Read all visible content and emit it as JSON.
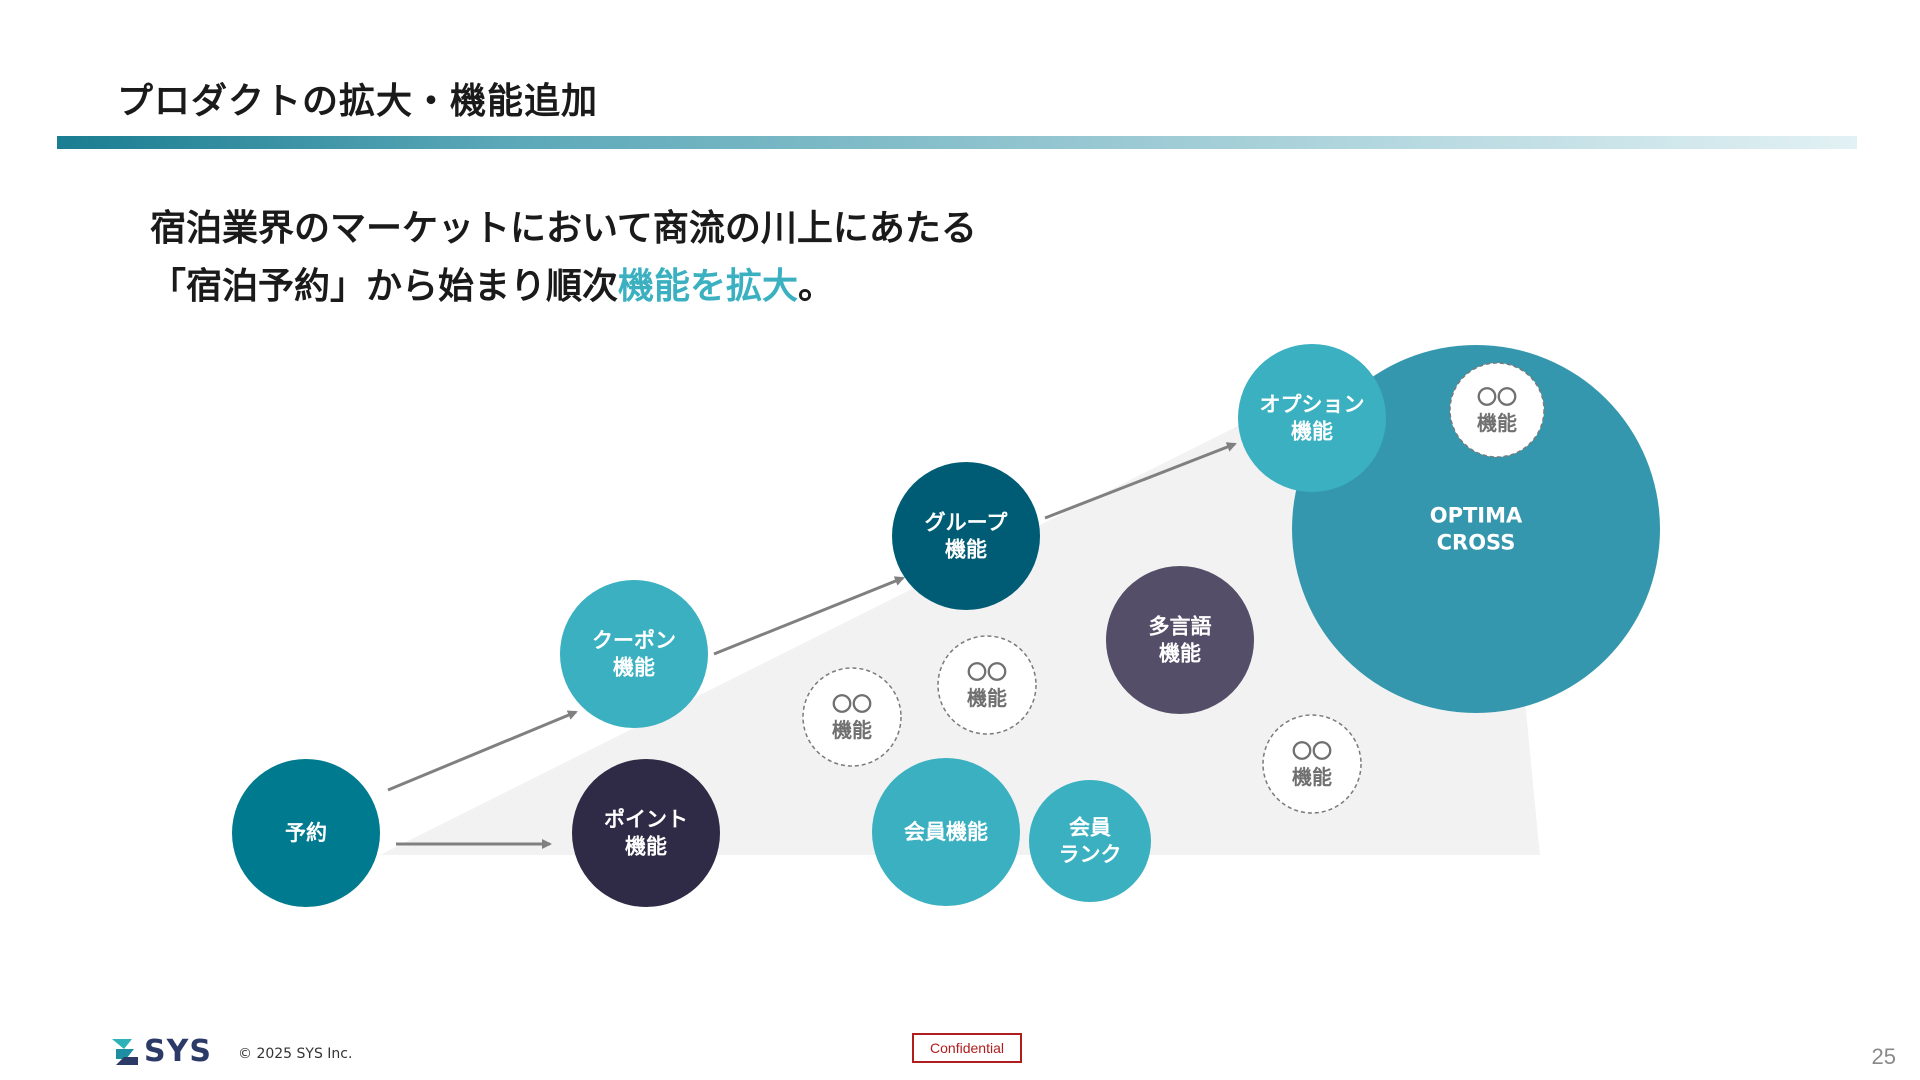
{
  "slide": {
    "title": "プロダクトの拡大・機能追加",
    "lead_line1": "宿泊業界のマーケットにおいて商流の川上にあたる",
    "lead_line2_pre": "「宿泊予約」から始まり順次",
    "lead_line2_hl": "機能を拡大",
    "lead_line2_post": "。",
    "colors": {
      "accent": "#3ab0c0",
      "teal_dark": "#007a8f",
      "navy": "#005c75",
      "purple_dark": "#2f2a45",
      "slate_purple": "#544e68",
      "big_circle": "#3497ad"
    }
  },
  "diagram": {
    "nodes": [
      {
        "id": "yoyaku",
        "lines": [
          "予約"
        ]
      },
      {
        "id": "coupon",
        "lines": [
          "クーポン",
          "機能"
        ]
      },
      {
        "id": "point",
        "lines": [
          "ポイント",
          "機能"
        ]
      },
      {
        "id": "group",
        "lines": [
          "グループ",
          "機能"
        ]
      },
      {
        "id": "kaiin",
        "lines": [
          "会員機能"
        ]
      },
      {
        "id": "kaiin-rank",
        "lines": [
          "会員",
          "ランク"
        ]
      },
      {
        "id": "tagengo",
        "lines": [
          "多言語",
          "機能"
        ]
      },
      {
        "id": "option",
        "lines": [
          "オプション",
          "機能"
        ]
      },
      {
        "id": "optima-cross",
        "lines": [
          "OPTIMA",
          "CROSS"
        ]
      },
      {
        "id": "placeholder-1",
        "lines": [
          "〇〇",
          "機能"
        ]
      },
      {
        "id": "placeholder-2",
        "lines": [
          "〇〇",
          "機能"
        ]
      },
      {
        "id": "placeholder-3",
        "lines": [
          "〇〇",
          "機能"
        ]
      },
      {
        "id": "placeholder-4",
        "lines": [
          "〇〇",
          "機能"
        ]
      }
    ],
    "edges": [
      {
        "from": "yoyaku",
        "to": "coupon"
      },
      {
        "from": "yoyaku",
        "to": "point"
      },
      {
        "from": "coupon",
        "to": "group"
      },
      {
        "from": "group",
        "to": "option"
      }
    ]
  },
  "footer": {
    "logo_text": "SYS",
    "copyright": "©  2025    SYS Inc.",
    "confidential": "Confidential",
    "page_number": "25"
  }
}
